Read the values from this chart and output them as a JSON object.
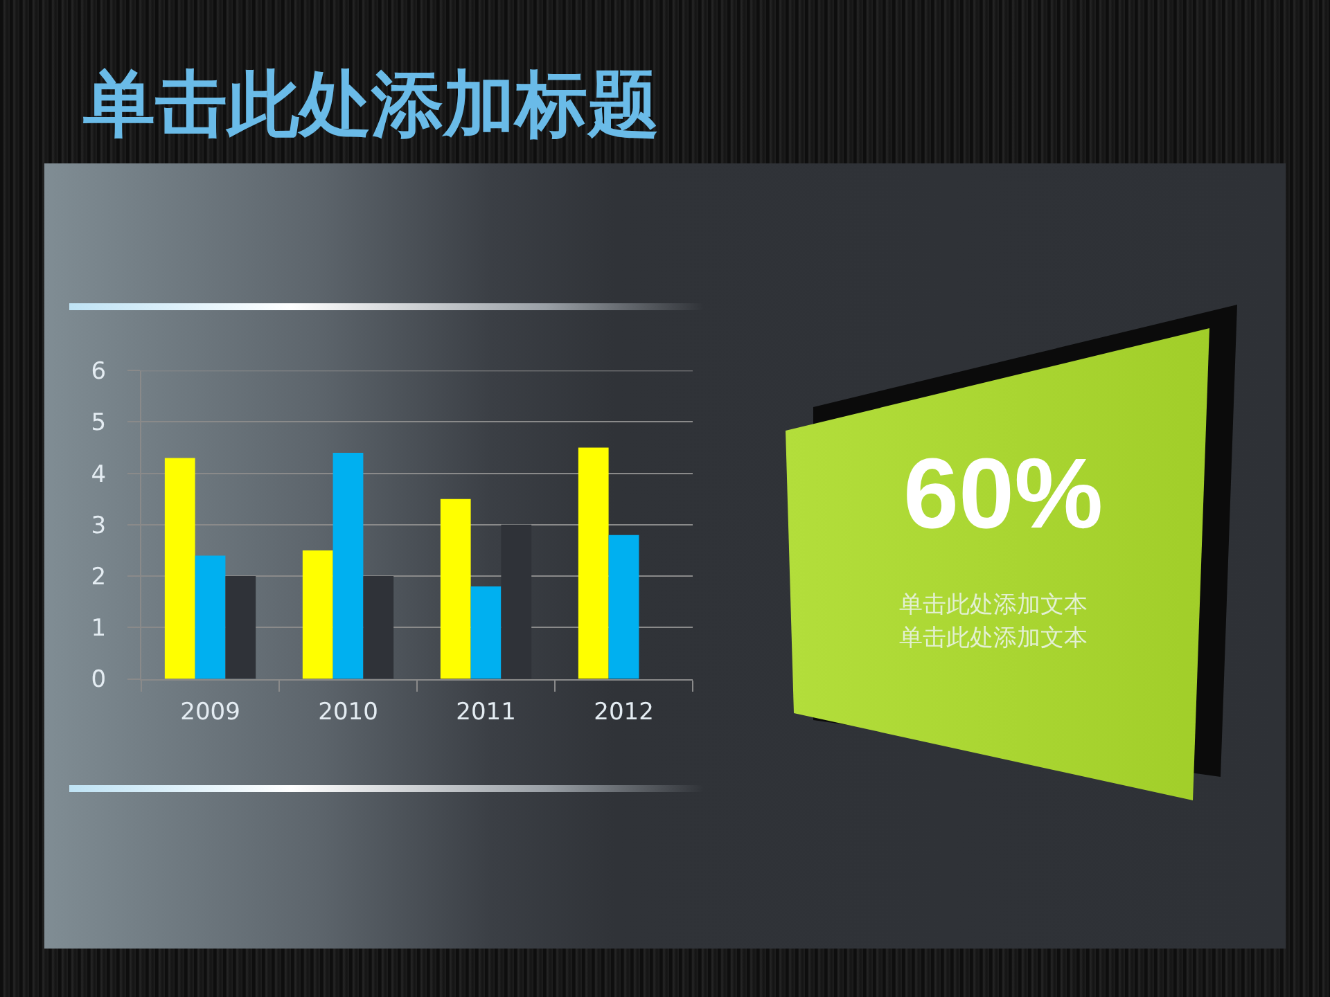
{
  "chart_data": [
    {
      "type": "bar",
      "title": "单击此处添加标题",
      "categories": [
        "2009",
        "2010",
        "2011",
        "2012"
      ],
      "series": [
        {
          "color": "#ffff00",
          "values": [
            4.3,
            2.5,
            3.5,
            4.5
          ]
        },
        {
          "color": "#00b0f0",
          "values": [
            2.4,
            4.4,
            1.8,
            2.8
          ]
        },
        {
          "color": "#2f3238",
          "values": [
            2,
            2,
            3,
            null
          ]
        }
      ],
      "ylim": [
        0,
        6
      ],
      "yticks": [
        0,
        1,
        2,
        3,
        4,
        5,
        6
      ],
      "grid": "y"
    },
    {
      "type": "other",
      "title": "60%",
      "annotations": [
        "单击此处添加文本",
        "单击此处添加文本"
      ]
    }
  ]
}
